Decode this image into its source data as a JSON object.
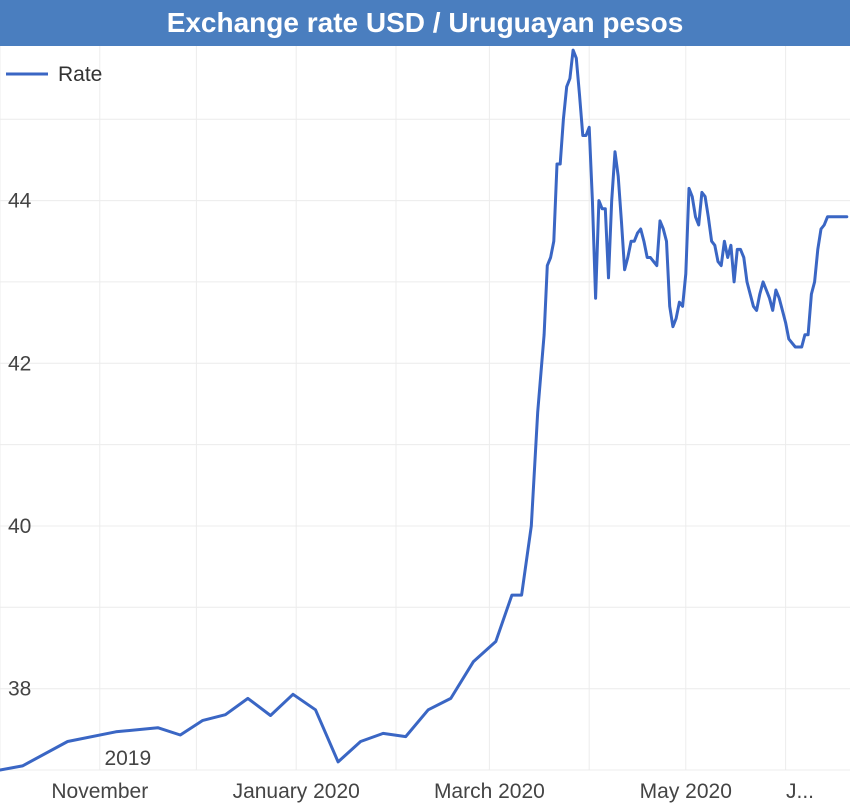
{
  "title": "Exchange rate USD / Uruguayan pesos",
  "colors": {
    "title_bg": "#4a7ebf",
    "title_text": "#ffffff",
    "series": "#3a66c4",
    "grid": "#ececec"
  },
  "legend": {
    "label": "Rate",
    "placement": "top-left"
  },
  "chart_data": {
    "type": "line",
    "title": "Exchange rate USD / Uruguayan pesos",
    "xlabel": "",
    "ylabel": "",
    "grid": true,
    "ylim": [
      37.0,
      45.9
    ],
    "xlim": [
      "2019-10-01",
      "2020-06-21"
    ],
    "y_ticks": [
      38,
      40,
      42,
      44
    ],
    "x_ticks": [
      {
        "date": "2019-11-01",
        "label": "November",
        "sublabel": "2019"
      },
      {
        "date": "2020-01-01",
        "label": "January 2020"
      },
      {
        "date": "2020-03-01",
        "label": "March 2020"
      },
      {
        "date": "2020-05-01",
        "label": "May 2020"
      },
      {
        "date": "2020-07-01",
        "label": "J..."
      }
    ],
    "series": [
      {
        "name": "Rate",
        "x": [
          "2019-10-01",
          "2019-10-08",
          "2019-10-22",
          "2019-11-06",
          "2019-11-19",
          "2019-11-26",
          "2019-12-03",
          "2019-12-10",
          "2019-12-17",
          "2019-12-24",
          "2019-12-31",
          "2020-01-07",
          "2020-01-14",
          "2020-01-21",
          "2020-01-28",
          "2020-02-04",
          "2020-02-11",
          "2020-02-18",
          "2020-02-25",
          "2020-03-03",
          "2020-03-08",
          "2020-03-11",
          "2020-03-14",
          "2020-03-16",
          "2020-03-18",
          "2020-03-19",
          "2020-03-20",
          "2020-03-21",
          "2020-03-22",
          "2020-03-23",
          "2020-03-24",
          "2020-03-25",
          "2020-03-26",
          "2020-03-27",
          "2020-03-28",
          "2020-03-29",
          "2020-03-30",
          "2020-03-31",
          "2020-04-01",
          "2020-04-02",
          "2020-04-03",
          "2020-04-04",
          "2020-04-05",
          "2020-04-06",
          "2020-04-07",
          "2020-04-08",
          "2020-04-09",
          "2020-04-10",
          "2020-04-11",
          "2020-04-12",
          "2020-04-13",
          "2020-04-14",
          "2020-04-15",
          "2020-04-16",
          "2020-04-17",
          "2020-04-18",
          "2020-04-19",
          "2020-04-20",
          "2020-04-21",
          "2020-04-22",
          "2020-04-23",
          "2020-04-24",
          "2020-04-25",
          "2020-04-26",
          "2020-04-27",
          "2020-04-28",
          "2020-04-29",
          "2020-04-30",
          "2020-05-01",
          "2020-05-02",
          "2020-05-03",
          "2020-05-04",
          "2020-05-05",
          "2020-05-06",
          "2020-05-07",
          "2020-05-08",
          "2020-05-09",
          "2020-05-10",
          "2020-05-11",
          "2020-05-12",
          "2020-05-13",
          "2020-05-14",
          "2020-05-15",
          "2020-05-16",
          "2020-05-17",
          "2020-05-18",
          "2020-05-19",
          "2020-05-20",
          "2020-05-21",
          "2020-05-22",
          "2020-05-23",
          "2020-05-24",
          "2020-05-25",
          "2020-05-26",
          "2020-05-27",
          "2020-05-28",
          "2020-05-29",
          "2020-05-30",
          "2020-05-31",
          "2020-06-01",
          "2020-06-02",
          "2020-06-03",
          "2020-06-04",
          "2020-06-05",
          "2020-06-06",
          "2020-06-07",
          "2020-06-08",
          "2020-06-09",
          "2020-06-10",
          "2020-06-11",
          "2020-06-12",
          "2020-06-13",
          "2020-06-14",
          "2020-06-15",
          "2020-06-16",
          "2020-06-17",
          "2020-06-18",
          "2020-06-19",
          "2020-06-20"
        ],
        "y": [
          37.0,
          37.05,
          37.35,
          37.47,
          37.52,
          37.43,
          37.61,
          37.68,
          37.88,
          37.67,
          37.93,
          37.74,
          37.1,
          37.35,
          37.45,
          37.41,
          37.74,
          37.88,
          38.33,
          38.58,
          39.15,
          39.15,
          40.0,
          41.4,
          42.35,
          43.2,
          43.3,
          43.5,
          44.45,
          44.45,
          45.0,
          45.4,
          45.5,
          45.85,
          45.75,
          45.3,
          44.8,
          44.8,
          44.9,
          44.0,
          42.8,
          44.0,
          43.9,
          43.9,
          43.05,
          44.0,
          44.6,
          44.3,
          43.75,
          43.15,
          43.3,
          43.5,
          43.5,
          43.6,
          43.65,
          43.5,
          43.3,
          43.3,
          43.25,
          43.2,
          43.75,
          43.65,
          43.5,
          42.7,
          42.45,
          42.55,
          42.75,
          42.7,
          43.1,
          44.15,
          44.05,
          43.8,
          43.7,
          44.1,
          44.05,
          43.8,
          43.5,
          43.45,
          43.25,
          43.2,
          43.5,
          43.3,
          43.45,
          43.0,
          43.4,
          43.4,
          43.3,
          43.0,
          42.85,
          42.7,
          42.65,
          42.85,
          43.0,
          42.9,
          42.8,
          42.65,
          42.9,
          42.8,
          42.65,
          42.5,
          42.3,
          42.25,
          42.2,
          42.2,
          42.2,
          42.35,
          42.35,
          42.85,
          43.0,
          43.4,
          43.65,
          43.7,
          43.8,
          43.8,
          43.8,
          43.8,
          43.8,
          43.8,
          43.8
        ]
      }
    ]
  }
}
